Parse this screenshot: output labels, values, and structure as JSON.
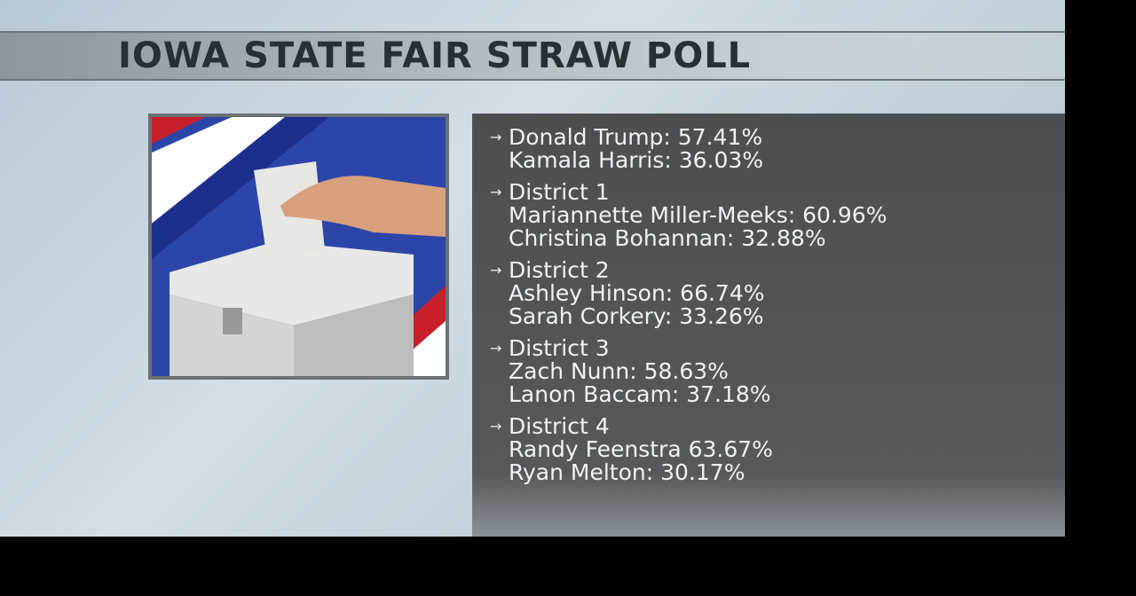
{
  "title": "IOWA STATE FAIR STRAW POLL",
  "groups": [
    {
      "lines": [
        "Donald Trump: 57.41%",
        "Kamala Harris: 36.03%"
      ]
    },
    {
      "lines": [
        "District 1",
        "Mariannette Miller-Meeks: 60.96%",
        "Christina Bohannan: 32.88%"
      ]
    },
    {
      "lines": [
        "District 2",
        "Ashley Hinson: 66.74%",
        "Sarah Corkery: 33.26%"
      ]
    },
    {
      "lines": [
        "District 3",
        "Zach Nunn: 58.63%",
        "Lanon Baccam: 37.18%"
      ]
    },
    {
      "lines": [
        "District 4",
        "Randy Feenstra 63.67%",
        "Ryan Melton: 30.17%"
      ]
    }
  ]
}
